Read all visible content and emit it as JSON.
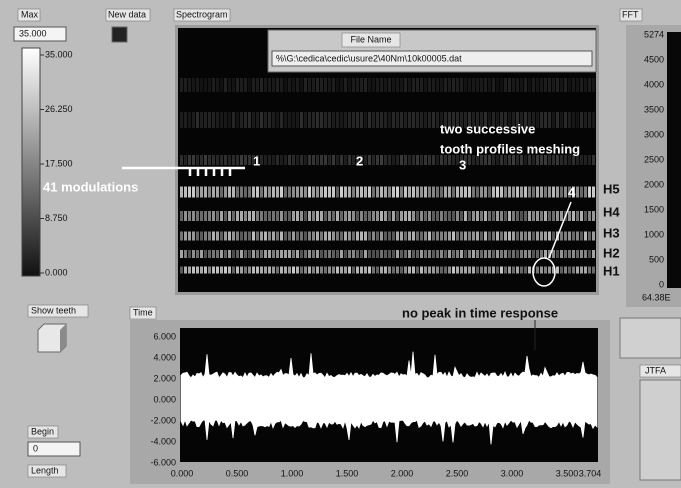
{
  "controls": {
    "max_label": "Max",
    "max_value": "35.000",
    "new_data": "New data",
    "show_teeth": "Show teeth",
    "begin_label": "Begin",
    "begin_value": "0",
    "length_label": "Length",
    "jtfa": "JTFA"
  },
  "spectrogram": {
    "label": "Spectrogram",
    "file_name_label": "File Name",
    "file_path": "%\\G:\\cedica\\cedic\\usure2\\40Nm\\10k00005.dat",
    "scale_ticks": [
      "35.000",
      "26.250",
      "17.500",
      "8.750",
      "0.000"
    ],
    "annotations": {
      "modulations": "41 modulations",
      "markers": [
        "1",
        "2",
        "3",
        "4"
      ],
      "meshing": [
        "two successive",
        "tooth profiles meshing"
      ],
      "harmonics": [
        "H5",
        "H4",
        "H3",
        "H2",
        "H1"
      ]
    }
  },
  "fft": {
    "label": "FFT",
    "ticks": [
      "5274",
      "4500",
      "4000",
      "3500",
      "3000",
      "2500",
      "2000",
      "1500",
      "1000",
      "500",
      "0"
    ],
    "bottom": "64.38E"
  },
  "time": {
    "label": "Time",
    "annotation": "no peak in time response",
    "yticks": [
      "6.000",
      "4.000",
      "2.000",
      "0.000",
      "-2.000",
      "-4.000",
      "-6.000"
    ],
    "xticks": [
      "0.000",
      "0.500",
      "1.000",
      "1.500",
      "2.000",
      "2.500",
      "3.000",
      "3.500",
      "3.704"
    ]
  }
}
